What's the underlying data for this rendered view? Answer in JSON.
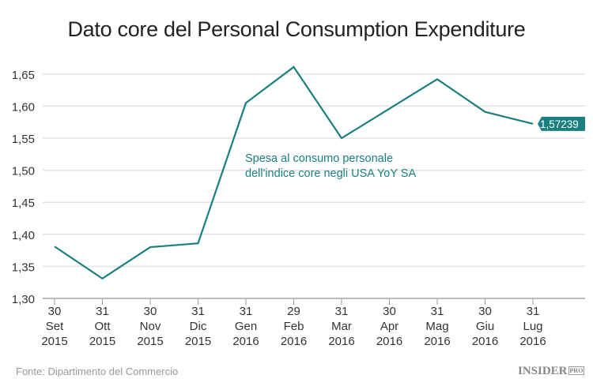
{
  "chart_data": {
    "type": "line",
    "title": "Dato core del Personal Consumption Expenditure",
    "categories": [
      [
        "30",
        "Set",
        "2015"
      ],
      [
        "31",
        "Ott",
        "2015"
      ],
      [
        "30",
        "Nov",
        "2015"
      ],
      [
        "31",
        "Dic",
        "2015"
      ],
      [
        "31",
        "Gen",
        "2016"
      ],
      [
        "29",
        "Feb",
        "2016"
      ],
      [
        "31",
        "Mar",
        "2016"
      ],
      [
        "30",
        "Apr",
        "2016"
      ],
      [
        "31",
        "Mag",
        "2016"
      ],
      [
        "30",
        "Giu",
        "2016"
      ],
      [
        "31",
        "Lug",
        "2016"
      ]
    ],
    "series": [
      {
        "name": "Spesa al consumo personale dell'indice core negli USA YoY SA",
        "values": [
          1.381,
          1.331,
          1.38,
          1.386,
          1.605,
          1.661,
          1.55,
          1.596,
          1.642,
          1.591,
          1.57239
        ]
      }
    ],
    "series_label_lines": [
      "Spesa al consumo personale",
      "dell'indice core negli USA YoY SA"
    ],
    "last_value_label": "1,57239",
    "ylim": [
      1.3,
      1.67
    ],
    "yticks": [
      "1,30",
      "1,35",
      "1,40",
      "1,45",
      "1,50",
      "1,55",
      "1,60",
      "1,65"
    ],
    "ytick_values": [
      1.3,
      1.35,
      1.4,
      1.45,
      1.5,
      1.55,
      1.6,
      1.65
    ],
    "grid": true,
    "line_color": "#1a7f80",
    "grid_color": "#e3e3e3"
  },
  "footer": {
    "source": "Fonte: Dipartimento del Commercio",
    "logo": "INSIDER",
    "logo_badge": "PRO"
  }
}
